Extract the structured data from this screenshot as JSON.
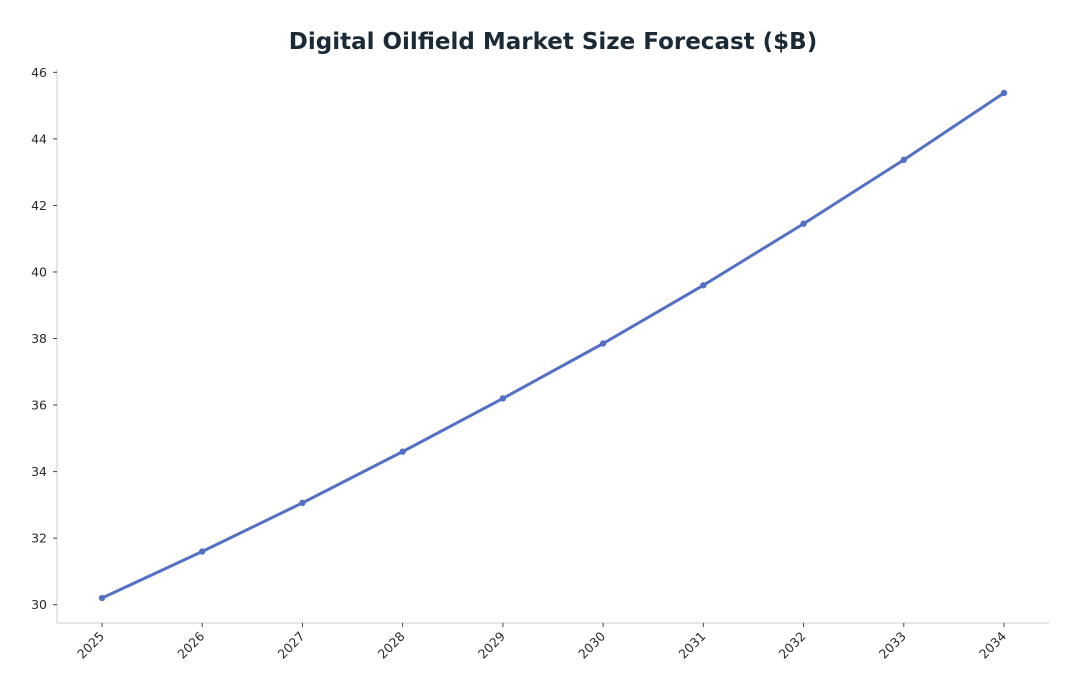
{
  "chart_data": {
    "type": "line",
    "title": "Digital Oilfield Market Size Forecast ($B)",
    "xlabel": "",
    "ylabel": "",
    "x": [
      "2025",
      "2026",
      "2027",
      "2028",
      "2029",
      "2030",
      "2031",
      "2032",
      "2033",
      "2034"
    ],
    "series": [
      {
        "values": [
          30.2,
          31.6,
          33.06,
          34.6,
          36.2,
          37.85,
          39.6,
          41.45,
          43.37,
          45.38
        ],
        "color": "#5470c6"
      }
    ],
    "ylim": [
      29.45,
      46.1
    ],
    "yticks": [
      30,
      32,
      34,
      36,
      38,
      40,
      42,
      44,
      46
    ],
    "grid": false,
    "legend": "none"
  }
}
